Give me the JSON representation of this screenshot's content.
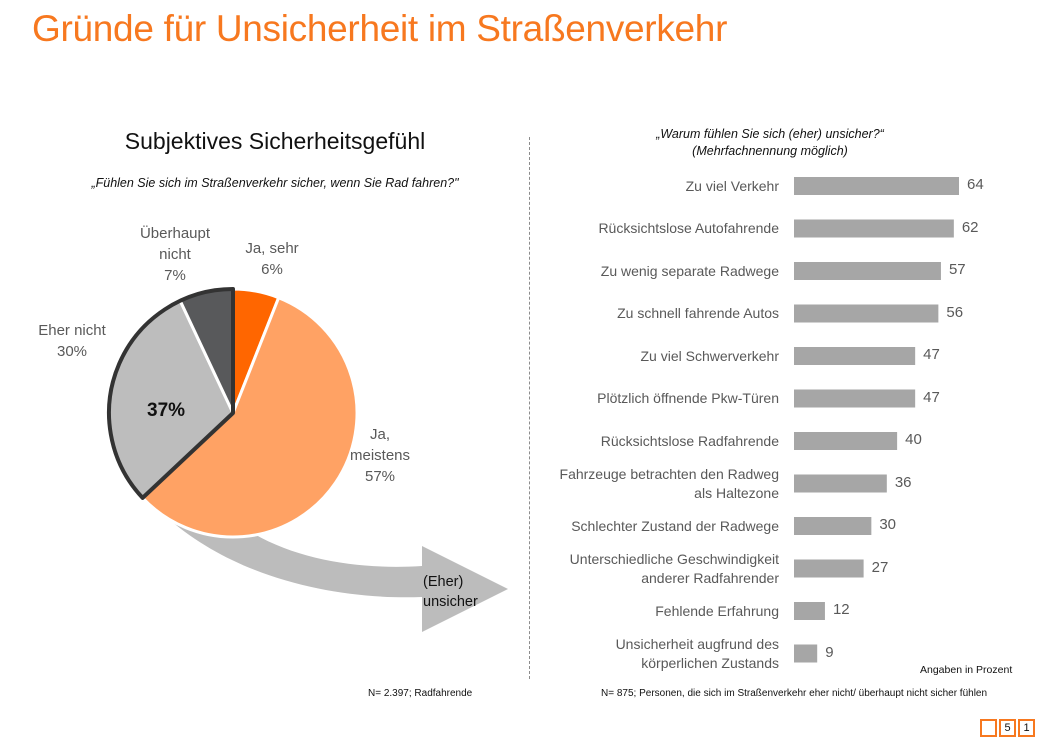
{
  "header": {
    "title": "Gründe für Unsicherheit im Straßenverkehr"
  },
  "colors": {
    "accent": "#f7781f",
    "ja_sehr": "#ff6600",
    "ja_meistens": "#ffa264",
    "eher_nicht": "#bdbdbd",
    "ueberhaupt_nicht": "#58595b",
    "bar": "#a6a6a6",
    "arrow": "#bcbcbc"
  },
  "left_panel": {
    "title": "Subjektives Sicherheitsgefühl",
    "question": "„Fühlen Sie sich im Straßenverkehr sicher, wenn Sie Rad fahren?\"",
    "unsafe_total_label": "37%",
    "arrow_label_line1": "(Eher)",
    "arrow_label_line2": "unsicher",
    "footnote": "N= 2.397; Radfahrende"
  },
  "right_panel": {
    "question_line1": "„Warum fühlen Sie sich (eher) unsicher?“",
    "question_line2": "(Mehrfachnennung möglich)",
    "unit_note": "Angaben in Prozent",
    "footnote": "N= 875; Personen, die sich im Straßenverkehr eher nicht/ überhaupt nicht sicher fühlen"
  },
  "page_indicator": [
    "",
    "5",
    "1"
  ],
  "chart_data": [
    {
      "type": "pie",
      "title": "Subjektives Sicherheitsgefühl",
      "subtitle": "„Fühlen Sie sich im Straßenverkehr sicher, wenn Sie Rad fahren?\"",
      "slices": [
        {
          "label_lines": [
            "Ja, sehr"
          ],
          "value": 6,
          "display": "6%",
          "color_key": "ja_sehr"
        },
        {
          "label_lines": [
            "Ja,",
            "meistens"
          ],
          "value": 57,
          "display": "57%",
          "color_key": "ja_meistens"
        },
        {
          "label_lines": [
            "Eher nicht"
          ],
          "value": 30,
          "display": "30%",
          "color_key": "eher_nicht"
        },
        {
          "label_lines": [
            "Überhaupt",
            "nicht"
          ],
          "value": 7,
          "display": "7%",
          "color_key": "ueberhaupt_nicht"
        }
      ],
      "highlight_group": {
        "slices": [
          "Eher nicht",
          "Überhaupt nicht"
        ],
        "total": 37,
        "display": "37%"
      },
      "start_angle": "12 o'clock, clockwise"
    },
    {
      "type": "bar",
      "orientation": "horizontal",
      "title": "„Warum fühlen Sie sich (eher) unsicher?“ (Mehrfachnennung möglich)",
      "unit": "Prozent",
      "xlim": [
        0,
        64
      ],
      "categories": [
        [
          "Zu viel Verkehr"
        ],
        [
          "Rücksichtslose Autofahrende"
        ],
        [
          "Zu wenig separate Radwege"
        ],
        [
          "Zu schnell fahrende Autos"
        ],
        [
          "Zu viel Schwerverkehr"
        ],
        [
          "Plötzlich öffnende Pkw-Türen"
        ],
        [
          "Rücksichtslose Radfahrende"
        ],
        [
          "Fahrzeuge betrachten den Radweg",
          "als Haltezone"
        ],
        [
          "Schlechter Zustand der Radwege"
        ],
        [
          "Unterschiedliche Geschwindigkeit",
          "anderer Radfahrender"
        ],
        [
          "Fehlende Erfahrung"
        ],
        [
          "Unsicherheit augfrund des",
          "körperlichen Zustands"
        ]
      ],
      "values": [
        64,
        62,
        57,
        56,
        47,
        47,
        40,
        36,
        30,
        27,
        12,
        9
      ]
    }
  ]
}
